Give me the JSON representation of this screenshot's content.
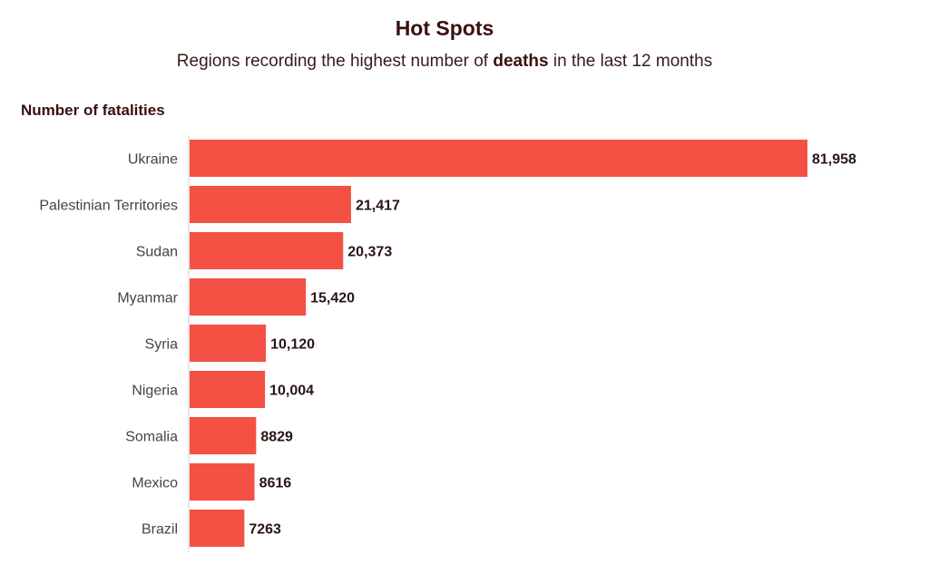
{
  "chart_data": {
    "type": "bar",
    "orientation": "horizontal",
    "title": "Hot Spots",
    "subtitle_parts": [
      "Regions recording the highest number of ",
      "deaths",
      " in the last 12 months"
    ],
    "ylabel": "Number of fatalities",
    "xlabel": "",
    "categories": [
      "Ukraine",
      "Palestinian Territories",
      "Sudan",
      "Myanmar",
      "Syria",
      "Nigeria",
      "Somalia",
      "Mexico",
      "Brazil"
    ],
    "values": [
      81958,
      21417,
      20373,
      15420,
      10120,
      10004,
      8829,
      8616,
      7263
    ],
    "value_labels": [
      "81,958",
      "21,417",
      "20,373",
      "15,420",
      "10,120",
      "10,004",
      "8829",
      "8616",
      "7263"
    ],
    "xlim": [
      0,
      81958
    ],
    "grid": false,
    "colors": {
      "bar": "#f45044",
      "axis": "#cfcfcf"
    }
  }
}
